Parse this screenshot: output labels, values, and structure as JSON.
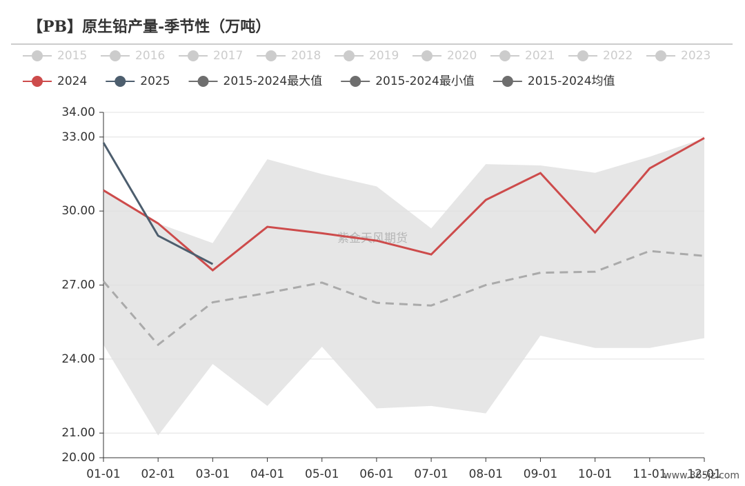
{
  "chart_data": {
    "type": "line",
    "title": "【PB】原生铅产量-季节性（万吨）",
    "watermark": "紫金天风期货",
    "site": "www.365jz.com",
    "categories": [
      "01-01",
      "02-01",
      "03-01",
      "04-01",
      "05-01",
      "06-01",
      "07-01",
      "08-01",
      "09-01",
      "10-01",
      "11-01",
      "12-01"
    ],
    "ylim": [
      20,
      34
    ],
    "yticks": [
      {
        "value": 20,
        "label": "20.00"
      },
      {
        "value": 21,
        "label": "21.00"
      },
      {
        "value": 24,
        "label": "24.00"
      },
      {
        "value": 27,
        "label": "27.00"
      },
      {
        "value": 30,
        "label": "30.00"
      },
      {
        "value": 33,
        "label": "33.00"
      },
      {
        "value": 34,
        "label": "34.00"
      }
    ],
    "grid": true,
    "fill_between_max_min": true,
    "band_color": "#e6e6e6",
    "series": [
      {
        "name": "2015",
        "color": "#cccccc"
      },
      {
        "name": "2016",
        "color": "#cccccc"
      },
      {
        "name": "2017",
        "color": "#cccccc"
      },
      {
        "name": "2018",
        "color": "#cccccc"
      },
      {
        "name": "2019",
        "color": "#cccccc"
      },
      {
        "name": "2020",
        "color": "#cccccc"
      },
      {
        "name": "2021",
        "color": "#cccccc"
      },
      {
        "name": "2022",
        "color": "#cccccc"
      },
      {
        "name": "2023",
        "color": "#cccccc"
      },
      {
        "name": "2024",
        "color": "#cd4b4b",
        "values": [
          30.84,
          29.5,
          27.6,
          29.36,
          29.1,
          28.8,
          28.24,
          30.45,
          31.54,
          29.13,
          31.73,
          32.96
        ]
      },
      {
        "name": "2025",
        "color": "#4d5e6e",
        "values": [
          32.77,
          29.0,
          27.85,
          null,
          null,
          null,
          null,
          null,
          null,
          null,
          null,
          null
        ]
      },
      {
        "name": "2015-2024最大值",
        "color": "#6e6e6e",
        "role": "max",
        "values": [
          30.84,
          29.5,
          28.7,
          32.1,
          31.5,
          31.0,
          29.3,
          31.9,
          31.85,
          31.55,
          32.2,
          32.96
        ]
      },
      {
        "name": "2015-2024最小值",
        "color": "#6e6e6e",
        "role": "min",
        "values": [
          24.58,
          20.9,
          23.8,
          22.1,
          24.5,
          22.0,
          22.1,
          21.8,
          24.95,
          24.45,
          24.45,
          24.85
        ]
      },
      {
        "name": "2015-2024均值",
        "color": "#6e6e6e",
        "role": "mean",
        "line_color": "#aaaaaa",
        "dashed": true,
        "values": [
          27.15,
          24.58,
          26.3,
          26.68,
          27.1,
          26.28,
          26.17,
          27.0,
          27.5,
          27.54,
          28.38,
          28.18
        ]
      }
    ]
  }
}
